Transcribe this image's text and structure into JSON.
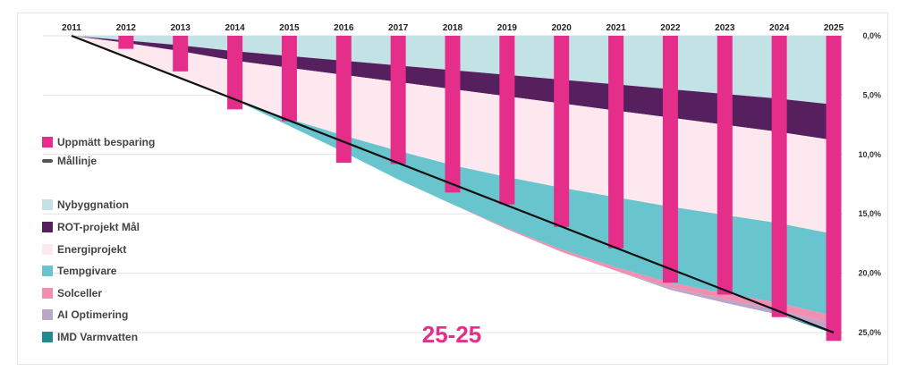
{
  "chart_data": {
    "type": "area",
    "x": [
      2011,
      2012,
      2013,
      2014,
      2015,
      2016,
      2017,
      2018,
      2019,
      2020,
      2021,
      2022,
      2023,
      2024,
      2025
    ],
    "x_tick_labels": [
      "2011",
      "2012",
      "2013",
      "2014",
      "2015",
      "2016",
      "2017",
      "2018",
      "2019",
      "2020",
      "2021",
      "2022",
      "2023",
      "2024",
      "2025"
    ],
    "ylim": [
      0,
      25
    ],
    "y_inverted": true,
    "y_ticks": [
      0,
      5,
      10,
      15,
      20,
      25
    ],
    "y_tick_labels": [
      "0,0%",
      "5,0%",
      "10,0%",
      "15,0%",
      "20,0%",
      "25,0%"
    ],
    "grid": true,
    "legend_position": "left",
    "stack_layers": [
      {
        "name": "Nybyggnation",
        "color": "#c2e2e5",
        "values": [
          0,
          0.4,
          0.8,
          1.3,
          1.7,
          2.1,
          2.5,
          2.9,
          3.3,
          3.7,
          4.1,
          4.5,
          4.9,
          5.3,
          5.8
        ]
      },
      {
        "name": "ROT-projekt Mål",
        "color": "#56205f",
        "values": [
          0,
          0.2,
          0.5,
          0.8,
          1.0,
          1.2,
          1.4,
          1.6,
          1.8,
          2.0,
          2.2,
          2.4,
          2.6,
          2.8,
          3.0
        ]
      },
      {
        "name": "Energiprojekt",
        "color": "#fce8ee",
        "values": [
          0,
          1.1,
          2.2,
          3.3,
          4.3,
          5.1,
          5.8,
          6.4,
          6.8,
          7.1,
          7.3,
          7.5,
          7.6,
          7.7,
          7.9
        ]
      },
      {
        "name": "Tempgivare",
        "color": "#68c5cd",
        "values": [
          0,
          0,
          0,
          0,
          0.6,
          1.4,
          2.4,
          3.3,
          4.3,
          5.2,
          5.9,
          6.4,
          6.6,
          6.7,
          6.9
        ]
      },
      {
        "name": "Solceller",
        "color": "#f18fb1",
        "values": [
          0,
          0,
          0,
          0,
          0,
          0,
          0,
          0,
          0.1,
          0.2,
          0.3,
          0.4,
          0.5,
          0.6,
          0.7
        ]
      },
      {
        "name": "AI Optimering",
        "color": "#b9a6c9",
        "values": [
          0,
          0,
          0,
          0,
          0,
          0,
          0,
          0,
          0,
          0,
          0,
          0.2,
          0.3,
          0.4,
          0.6
        ]
      },
      {
        "name": "IMD Varmvatten",
        "color": "#1f8d8f",
        "values": [
          0,
          0,
          0,
          0,
          0,
          0,
          0,
          0,
          0,
          0,
          0,
          0,
          0,
          0,
          0.2
        ]
      }
    ],
    "bar_series": {
      "name": "Uppmätt besparing",
      "color": "#e52d8a",
      "values": [
        null,
        1.1,
        3.0,
        6.2,
        7.2,
        10.7,
        10.8,
        13.2,
        14.2,
        16.1,
        17.9,
        20.8,
        21.8,
        23.7,
        25.7
      ]
    },
    "line_series": {
      "name": "Mållinje",
      "color": "#111111",
      "x": [
        2011,
        2025
      ],
      "values": [
        0,
        25
      ]
    },
    "legend": [
      {
        "label": "Uppmätt besparing",
        "color": "#e52d8a",
        "shape": "square"
      },
      {
        "label": "Mållinje",
        "color": "#555555",
        "shape": "line"
      },
      {
        "label": "Nybyggnation",
        "color": "#c2e2e5",
        "shape": "square"
      },
      {
        "label": "ROT-projekt Mål",
        "color": "#56205f",
        "shape": "square"
      },
      {
        "label": "Energiprojekt",
        "color": "#fce8ee",
        "shape": "square"
      },
      {
        "label": "Tempgivare",
        "color": "#68c5cd",
        "shape": "square"
      },
      {
        "label": "Solceller",
        "color": "#f18fb1",
        "shape": "square"
      },
      {
        "label": "AI Optimering",
        "color": "#b9a6c9",
        "shape": "square"
      },
      {
        "label": "IMD Varmvatten",
        "color": "#1f8d8f",
        "shape": "square"
      }
    ],
    "center_label": "25-25",
    "center_label_color": "#e52d8a"
  }
}
